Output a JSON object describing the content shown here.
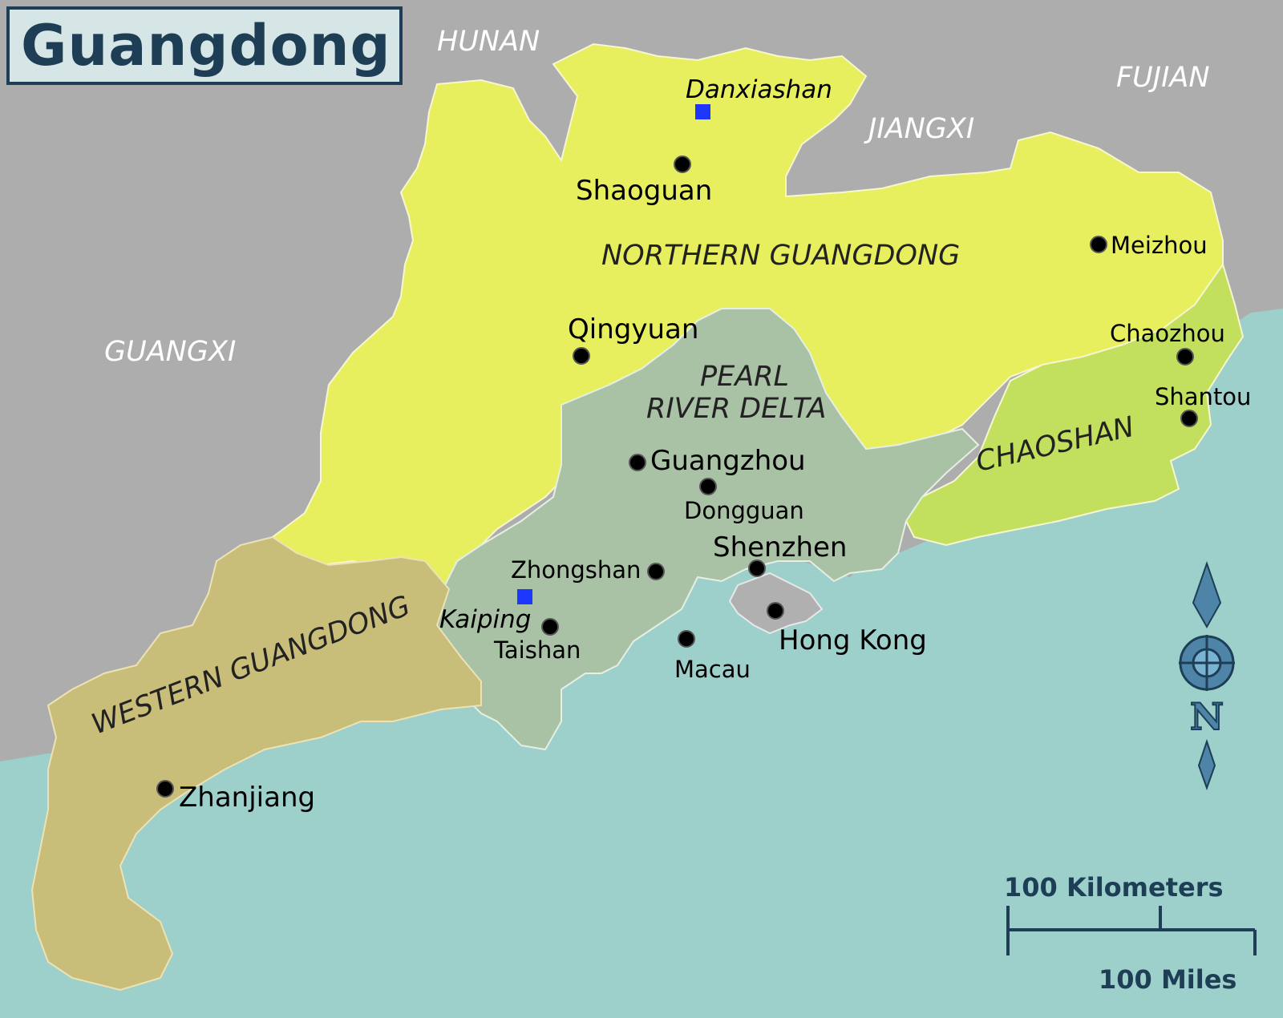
{
  "title": "Guangdong",
  "neighbors": {
    "hunan": "HUNAN",
    "jiangxi": "JIANGXI",
    "fujian": "FUJIAN",
    "guangxi": "GUANGXI"
  },
  "regions": {
    "northern": "NORTHERN GUANGDONG",
    "prd_line1": "PEARL",
    "prd_line2": "RIVER DELTA",
    "chaoshan": "CHAOSHAN",
    "western": "WESTERN GUANGDONG"
  },
  "cities": {
    "shaoguan": "Shaoguan",
    "meizhou": "Meizhou",
    "qingyuan": "Qingyuan",
    "chaozhou": "Chaozhou",
    "shantou": "Shantou",
    "guangzhou": "Guangzhou",
    "dongguan": "Dongguan",
    "shenzhen": "Shenzhen",
    "zhongshan": "Zhongshan",
    "taishan": "Taishan",
    "hongkong": "Hong Kong",
    "macau": "Macau",
    "zhanjiang": "Zhanjiang"
  },
  "sites": {
    "danxiashan": "Danxiashan",
    "kaiping": "Kaiping"
  },
  "compass": {
    "letter": "N"
  },
  "scale": {
    "km": "100 Kilometers",
    "miles": "100 Miles"
  },
  "colors": {
    "sea": "#9dcfcb",
    "foreign_land": "#adadad",
    "northern": "#e8ef5e",
    "pearl_river_delta": "#a9c2a5",
    "chaoshan": "#c2e05e",
    "western": "#c9bd7a",
    "hong_kong": "#b0b0b0",
    "title_accent": "#1d3e55",
    "site_marker": "#1e37ff"
  }
}
